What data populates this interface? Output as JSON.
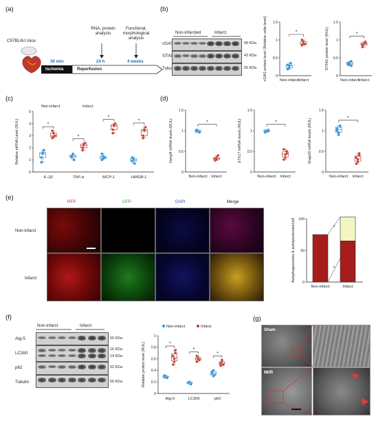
{
  "panel_a": {
    "label": "(a)",
    "mice": "C57BL/6J mice",
    "steps": [
      "RNA, protein analysis",
      "Functional, morphological analysis"
    ],
    "times": [
      "30 min",
      "24 h",
      "4 weeks"
    ],
    "bar_labels": [
      "Ischemia",
      "Reperfusion"
    ],
    "colors": {
      "ischemia": "#111111",
      "time_text": "#2b6cb0"
    }
  },
  "panel_b": {
    "label": "(b)",
    "group_labels": [
      "Non-infarcted",
      "Infarct"
    ],
    "rows": [
      "cGAS",
      "STING",
      "Tubulin"
    ],
    "sizes": [
      "58 KDa",
      "42 KDa",
      "55 KDa"
    ],
    "chart1_ylabel": "cGAS protein level (Relative units level)",
    "chart2_ylabel": "STING protein level (RUL)"
  },
  "panel_c": {
    "label": "(c)",
    "legend": [
      "Non-infarct",
      "Infarct"
    ],
    "ylabel": "Relative mRNA Level (RUL)"
  },
  "panel_d": {
    "label": "(d)",
    "ylabels": [
      "Vamp8 mRNA levels (RUL)",
      "STX17 mRNA levels (RUL)",
      "Snap29 mRNA levels (RUL)"
    ]
  },
  "panel_e": {
    "label": "(e)",
    "channels": [
      "RFP",
      "GFP",
      "DAPI",
      "Merge"
    ],
    "rows": [
      "Non-infarct",
      "Infarct"
    ],
    "ylabel": "Autophagosomes & autolysosomes/cell"
  },
  "panel_f": {
    "label": "(f)",
    "group_labels": [
      "Non-infarct",
      "Infarct"
    ],
    "rows": [
      "Atg-5",
      "LC3I/II",
      "p62",
      "Tubulin"
    ],
    "sizes": [
      "55 KDa",
      "16 KDa",
      "14 KDa",
      "62 KDa",
      "55 KDa"
    ],
    "legend": [
      "Non-infarct",
      "Infarct"
    ],
    "ylabel": "Relative protein level (RUL)"
  },
  "panel_g": {
    "label": "(g)",
    "rows": [
      "Sham",
      "MI/R"
    ]
  },
  "chart_data": [
    {
      "type": "scatter",
      "id": "b1",
      "categories": [
        "Non-infarct",
        "Infarct"
      ],
      "ylim": [
        0,
        1.5
      ],
      "yticks": [
        0,
        0.5,
        1.0,
        1.5
      ],
      "significance": [
        "*"
      ],
      "series": [
        {
          "name": "Non-infarct",
          "values": [
            0.3,
            0.22,
            0.35,
            0.18,
            0.28
          ]
        },
        {
          "name": "Infarct",
          "values": [
            0.85,
            0.95,
            0.88,
            1.0,
            0.9
          ]
        }
      ]
    },
    {
      "type": "scatter",
      "id": "b2",
      "categories": [
        "Non-infarct",
        "Infarct"
      ],
      "ylim": [
        0,
        1.5
      ],
      "yticks": [
        0,
        0.5,
        1.0,
        1.5
      ],
      "significance": [
        "*"
      ],
      "series": [
        {
          "name": "Non-infarct",
          "values": [
            0.3,
            0.38,
            0.28,
            0.35,
            0.32,
            0.4
          ]
        },
        {
          "name": "Infarct",
          "values": [
            0.8,
            0.88,
            0.95,
            0.85,
            0.9,
            0.92
          ]
        }
      ]
    },
    {
      "type": "scatter",
      "id": "c",
      "categories": [
        "IL-1β",
        "TNF-α",
        "MCP-1",
        "HMGB-1"
      ],
      "ylim": [
        0,
        5
      ],
      "yticks": [
        0,
        1,
        2,
        3,
        4,
        5
      ],
      "significance": [
        "*",
        "*",
        "*",
        "*"
      ],
      "series": [
        {
          "name": "Non-infarct",
          "groups": [
            [
              1.2,
              1.5,
              1.8,
              0.8,
              1.6
            ],
            [
              1.2,
              1.4,
              1.0,
              1.3,
              1.5
            ],
            [
              1.0,
              1.3,
              1.2,
              1.5,
              1.1
            ],
            [
              0.9,
              1.0,
              0.7,
              1.2,
              1.1
            ]
          ]
        },
        {
          "name": "Infarct",
          "groups": [
            [
              2.8,
              3.2,
              3.0,
              3.4,
              2.9
            ],
            [
              1.8,
              2.2,
              2.4,
              2.0,
              2.3
            ],
            [
              3.2,
              3.8,
              4.0,
              3.5,
              3.9
            ],
            [
              3.0,
              3.4,
              3.7,
              2.8,
              3.5
            ]
          ]
        }
      ]
    },
    {
      "type": "scatter",
      "id": "d1",
      "categories": [
        "Non-infarct",
        "Infarct"
      ],
      "ylim": [
        0,
        1.5
      ],
      "yticks": [
        0,
        0.5,
        1.0,
        1.5
      ],
      "significance": [
        "*"
      ],
      "series": [
        {
          "name": "Non-infarct",
          "values": [
            0.98,
            1.0,
            0.96,
            1.02,
            1.0
          ]
        },
        {
          "name": "Infarct",
          "values": [
            0.28,
            0.35,
            0.4,
            0.32,
            0.3
          ]
        }
      ]
    },
    {
      "type": "scatter",
      "id": "d2",
      "categories": [
        "Non-infarct",
        "Infarct"
      ],
      "ylim": [
        0,
        1.5
      ],
      "yticks": [
        0,
        0.5,
        1.0,
        1.5
      ],
      "significance": [
        "*"
      ],
      "series": [
        {
          "name": "Non-infarct",
          "values": [
            1.0,
            0.98,
            1.02,
            0.96,
            1.0,
            0.99
          ]
        },
        {
          "name": "Infarct",
          "values": [
            0.3,
            0.42,
            0.5,
            0.55,
            0.35,
            0.45
          ]
        }
      ]
    },
    {
      "type": "scatter",
      "id": "d3",
      "categories": [
        "Non-infarct",
        "Infarct"
      ],
      "ylim": [
        0,
        1.5
      ],
      "yticks": [
        0,
        0.5,
        1.0,
        1.5
      ],
      "significance": [
        "*"
      ],
      "series": [
        {
          "name": "Non-infarct",
          "values": [
            1.0,
            0.9,
            1.1,
            1.05,
            0.95,
            1.12
          ]
        },
        {
          "name": "Infarct",
          "values": [
            0.2,
            0.3,
            0.4,
            0.35,
            0.25,
            0.45
          ]
        }
      ]
    },
    {
      "type": "bar",
      "id": "e",
      "categories": [
        "Non-infarct",
        "Infarct"
      ],
      "ylim": [
        0,
        100
      ],
      "yticks": [
        0,
        50,
        100
      ],
      "significance": [
        "*",
        "*"
      ],
      "series": [
        {
          "name": "Autophagosomes",
          "values": [
            75,
            65
          ]
        },
        {
          "name": "Autolysosomes",
          "values": [
            0,
            38
          ]
        }
      ]
    },
    {
      "type": "scatter",
      "id": "f",
      "categories": [
        "Atg-5",
        "LC3I/II",
        "p62"
      ],
      "ylim": [
        0,
        1.0
      ],
      "yticks": [
        0,
        0.2,
        0.4,
        0.6,
        0.8,
        1.0
      ],
      "significance": [
        "*",
        "*",
        "*"
      ],
      "series": [
        {
          "name": "Non-infarct",
          "groups": [
            [
              0.28,
              0.3,
              0.27,
              0.31
            ],
            [
              0.18,
              0.2,
              0.16,
              0.19
            ],
            [
              0.35,
              0.4,
              0.32,
              0.38,
              0.3
            ]
          ]
        },
        {
          "name": "Infarct",
          "groups": [
            [
              0.5,
              0.6,
              0.7,
              0.65,
              0.55,
              0.75
            ],
            [
              0.55,
              0.62,
              0.58,
              0.65,
              0.6
            ],
            [
              0.48,
              0.55,
              0.5,
              0.52,
              0.58
            ]
          ]
        }
      ]
    }
  ]
}
